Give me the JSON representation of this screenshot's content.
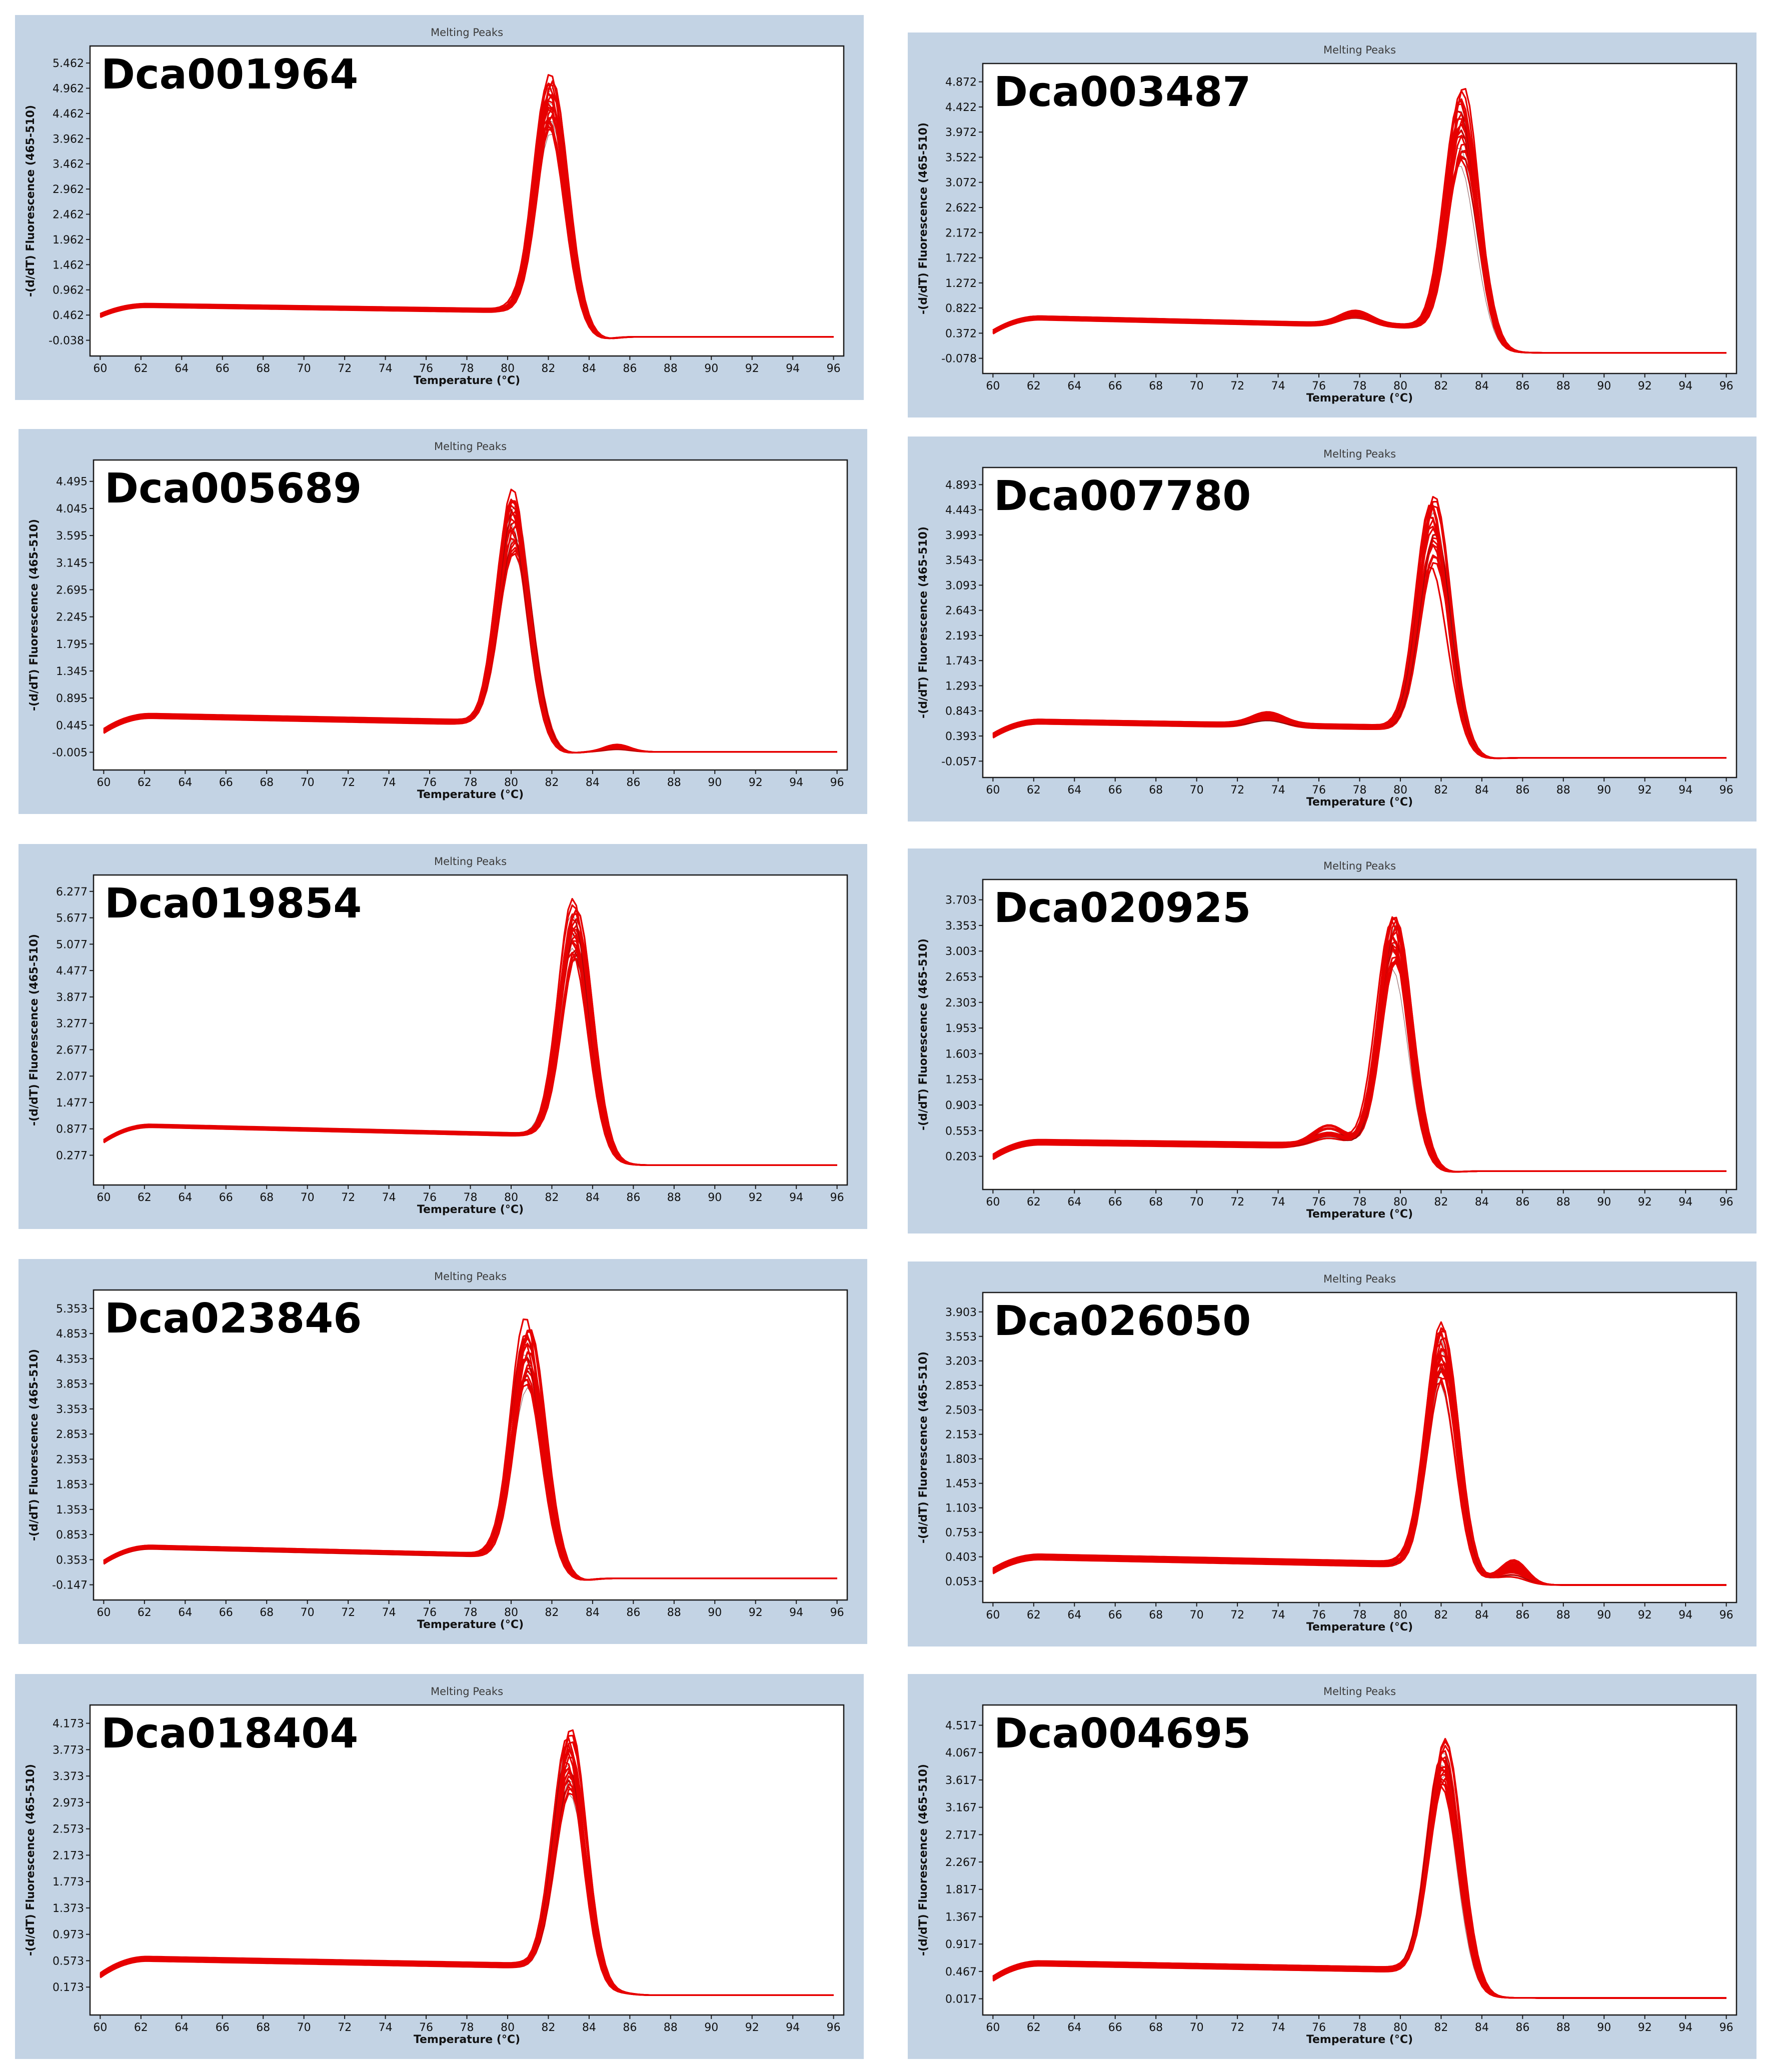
{
  "chart_data": [
    {
      "type": "line",
      "title": "Melting Peaks",
      "gene": "Dca001964",
      "xlabel": "Temperature (°C)",
      "ylabel": "-(d/dT) Fluorescence (465-510)",
      "x_ticks": [
        "60",
        "62",
        "64",
        "66",
        "68",
        "70",
        "72",
        "74",
        "76",
        "78",
        "80",
        "82",
        "84",
        "86",
        "88",
        "90",
        "92",
        "94",
        "96"
      ],
      "y_ticks": [
        "5.462",
        "4.962",
        "4.462",
        "3.962",
        "3.462",
        "2.962",
        "2.462",
        "1.962",
        "1.462",
        "0.962",
        "0.462",
        "-0.038"
      ],
      "xlim": [
        59.5,
        96.5
      ],
      "ylim": [
        -0.35,
        5.8
      ],
      "peak_temp": 82.1,
      "peak_height": [
        4.1,
        5.3
      ],
      "baseline": [
        0.45,
        0.65,
        0.55
      ],
      "trough": -0.05,
      "tail": 0.03,
      "shoulder": null,
      "secondary": null
    },
    {
      "type": "line",
      "title": "Melting Peaks",
      "gene": "Dca003487",
      "xlabel": "Temperature (°C)",
      "ylabel": "-(d/dT) Fluorescence (465-510)",
      "x_ticks": [
        "60",
        "62",
        "64",
        "66",
        "68",
        "70",
        "72",
        "74",
        "76",
        "78",
        "80",
        "82",
        "84",
        "86",
        "88",
        "90",
        "92",
        "94",
        "96"
      ],
      "y_ticks": [
        "4.872",
        "4.422",
        "3.972",
        "3.522",
        "3.072",
        "2.622",
        "2.172",
        "1.722",
        "1.272",
        "0.822",
        "0.372",
        "-0.078"
      ],
      "xlim": [
        59.5,
        96.5
      ],
      "ylim": [
        -0.35,
        5.2
      ],
      "peak_temp": 83.0,
      "peak_height": [
        3.4,
        4.85
      ],
      "baseline": [
        0.4,
        0.65,
        0.5
      ],
      "trough": 0.0,
      "tail": 0.02,
      "shoulder": {
        "temp": 77.8,
        "height": 0.18
      },
      "secondary": null
    },
    {
      "type": "line",
      "title": "Melting Peaks",
      "gene": "Dca005689",
      "xlabel": "Temperature (°C)",
      "ylabel": "-(d/dT) Fluorescence (465-510)",
      "x_ticks": [
        "60",
        "62",
        "64",
        "66",
        "68",
        "70",
        "72",
        "74",
        "76",
        "78",
        "80",
        "82",
        "84",
        "86",
        "88",
        "90",
        "92",
        "94",
        "96"
      ],
      "y_ticks": [
        "4.495",
        "4.045",
        "3.595",
        "3.145",
        "2.695",
        "2.245",
        "1.795",
        "1.345",
        "0.895",
        "0.445",
        "-0.005"
      ],
      "xlim": [
        59.5,
        96.5
      ],
      "ylim": [
        -0.3,
        4.85
      ],
      "peak_temp": 80.1,
      "peak_height": [
        3.3,
        4.45
      ],
      "baseline": [
        0.35,
        0.6,
        0.5
      ],
      "trough": -0.03,
      "tail": 0.0,
      "shoulder": null,
      "secondary": {
        "temp": 85.2,
        "height": 0.1
      }
    },
    {
      "type": "line",
      "title": "Melting Peaks",
      "gene": "Dca007780",
      "xlabel": "Temperature (°C)",
      "ylabel": "-(d/dT) Fluorescence (465-510)",
      "x_ticks": [
        "60",
        "62",
        "64",
        "66",
        "68",
        "70",
        "72",
        "74",
        "76",
        "78",
        "80",
        "82",
        "84",
        "86",
        "88",
        "90",
        "92",
        "94",
        "96"
      ],
      "y_ticks": [
        "4.893",
        "4.443",
        "3.993",
        "3.543",
        "3.093",
        "2.643",
        "2.193",
        "1.743",
        "1.293",
        "0.843",
        "0.393",
        "-0.057"
      ],
      "xlim": [
        59.5,
        96.5
      ],
      "ylim": [
        -0.35,
        5.2
      ],
      "peak_temp": 81.6,
      "peak_height": [
        3.4,
        4.8
      ],
      "baseline": [
        0.4,
        0.65,
        0.55
      ],
      "trough": -0.02,
      "tail": 0.0,
      "shoulder": {
        "temp": 73.5,
        "height": 0.15
      },
      "secondary": null
    },
    {
      "type": "line",
      "title": "Melting Peaks",
      "gene": "Dca019854",
      "xlabel": "Temperature (°C)",
      "ylabel": "-(d/dT) Fluorescence (465-510)",
      "x_ticks": [
        "60",
        "62",
        "64",
        "66",
        "68",
        "70",
        "72",
        "74",
        "76",
        "78",
        "80",
        "82",
        "84",
        "86",
        "88",
        "90",
        "92",
        "94",
        "96"
      ],
      "y_ticks": [
        "6.277",
        "5.677",
        "5.077",
        "4.477",
        "3.877",
        "3.277",
        "2.677",
        "2.077",
        "1.477",
        "0.877",
        "0.277"
      ],
      "xlim": [
        59.5,
        96.5
      ],
      "ylim": [
        -0.4,
        6.65
      ],
      "peak_temp": 83.1,
      "peak_height": [
        4.7,
        6.15
      ],
      "baseline": [
        0.6,
        0.95,
        0.75
      ],
      "trough": 0.0,
      "tail": 0.05,
      "shoulder": null,
      "secondary": null
    },
    {
      "type": "line",
      "title": "Melting Peaks",
      "gene": "Dca020925",
      "xlabel": "Temperature (°C)",
      "ylabel": "-(d/dT) Fluorescence (465-510)",
      "x_ticks": [
        "60",
        "62",
        "64",
        "66",
        "68",
        "70",
        "72",
        "74",
        "76",
        "78",
        "80",
        "82",
        "84",
        "86",
        "88",
        "90",
        "92",
        "94",
        "96"
      ],
      "y_ticks": [
        "3.703",
        "3.353",
        "3.003",
        "2.653",
        "2.303",
        "1.953",
        "1.603",
        "1.253",
        "0.903",
        "0.553",
        "0.203"
      ],
      "xlim": [
        59.5,
        96.5
      ],
      "ylim": [
        -0.25,
        3.98
      ],
      "peak_temp": 79.7,
      "peak_height": [
        2.8,
        3.6
      ],
      "baseline": [
        0.2,
        0.4,
        0.35
      ],
      "trough": -0.02,
      "tail": 0.0,
      "shoulder": {
        "temp": 76.5,
        "height": 0.2
      },
      "secondary": null
    },
    {
      "type": "line",
      "title": "Melting Peaks",
      "gene": "Dca023846",
      "xlabel": "Temperature (°C)",
      "ylabel": "-(d/dT) Fluorescence (465-510)",
      "x_ticks": [
        "60",
        "62",
        "64",
        "66",
        "68",
        "70",
        "72",
        "74",
        "76",
        "78",
        "80",
        "82",
        "84",
        "86",
        "88",
        "90",
        "92",
        "94",
        "96"
      ],
      "y_ticks": [
        "5.353",
        "4.853",
        "4.353",
        "3.853",
        "3.353",
        "2.853",
        "2.353",
        "1.853",
        "1.353",
        "0.853",
        "0.353",
        "-0.147"
      ],
      "xlim": [
        59.5,
        96.5
      ],
      "ylim": [
        -0.45,
        5.72
      ],
      "peak_temp": 80.8,
      "peak_height": [
        3.8,
        5.2
      ],
      "baseline": [
        0.3,
        0.6,
        0.45
      ],
      "trough": -0.05,
      "tail": -0.02,
      "shoulder": null,
      "secondary": null
    },
    {
      "type": "line",
      "title": "Melting Peaks",
      "gene": "Dca026050",
      "xlabel": "Temperature (°C)",
      "ylabel": "-(d/dT) Fluorescence (465-510)",
      "x_ticks": [
        "60",
        "62",
        "64",
        "66",
        "68",
        "70",
        "72",
        "74",
        "76",
        "78",
        "80",
        "82",
        "84",
        "86",
        "88",
        "90",
        "92",
        "94",
        "96"
      ],
      "y_ticks": [
        "3.903",
        "3.553",
        "3.203",
        "2.853",
        "2.503",
        "2.153",
        "1.803",
        "1.453",
        "1.103",
        "0.753",
        "0.403",
        "0.053"
      ],
      "xlim": [
        59.5,
        96.5
      ],
      "ylim": [
        -0.25,
        4.18
      ],
      "peak_temp": 82.0,
      "peak_height": [
        2.9,
        3.85
      ],
      "baseline": [
        0.2,
        0.4,
        0.3
      ],
      "trough": 0.05,
      "tail": 0.0,
      "shoulder": null,
      "secondary": {
        "temp": 85.6,
        "height": 0.28
      }
    },
    {
      "type": "line",
      "title": "Melting Peaks",
      "gene": "Dca018404",
      "xlabel": "Temperature (°C)",
      "ylabel": "-(d/dT) Fluorescence (465-510)",
      "x_ticks": [
        "60",
        "62",
        "64",
        "66",
        "68",
        "70",
        "72",
        "74",
        "76",
        "78",
        "80",
        "82",
        "84",
        "86",
        "88",
        "90",
        "92",
        "94",
        "96"
      ],
      "y_ticks": [
        "4.173",
        "3.773",
        "3.373",
        "2.973",
        "2.573",
        "2.173",
        "1.773",
        "1.373",
        "0.973",
        "0.573",
        "0.173"
      ],
      "xlim": [
        59.5,
        96.5
      ],
      "ylim": [
        -0.25,
        4.45
      ],
      "peak_temp": 83.0,
      "peak_height": [
        3.1,
        4.1
      ],
      "baseline": [
        0.35,
        0.6,
        0.5
      ],
      "trough": 0.02,
      "tail": 0.05,
      "shoulder": null,
      "secondary": null
    },
    {
      "type": "line",
      "title": "Melting Peaks",
      "gene": "Dca004695",
      "xlabel": "Temperature (°C)",
      "ylabel": "-(d/dT) Fluorescence (465-510)",
      "x_ticks": [
        "60",
        "62",
        "64",
        "66",
        "68",
        "70",
        "72",
        "74",
        "76",
        "78",
        "80",
        "82",
        "84",
        "86",
        "88",
        "90",
        "92",
        "94",
        "96"
      ],
      "y_ticks": [
        "4.517",
        "4.067",
        "3.617",
        "3.167",
        "2.717",
        "2.267",
        "1.817",
        "1.367",
        "0.917",
        "0.467",
        "0.017"
      ],
      "xlim": [
        59.5,
        96.5
      ],
      "ylim": [
        -0.25,
        4.85
      ],
      "peak_temp": 82.1,
      "peak_height": [
        3.5,
        4.3
      ],
      "baseline": [
        0.35,
        0.6,
        0.5
      ],
      "trough": 0.0,
      "tail": 0.03,
      "shoulder": null,
      "secondary": null
    }
  ],
  "colors": {
    "panel_bg": "#c3d3e4",
    "curve": "#e60000"
  }
}
